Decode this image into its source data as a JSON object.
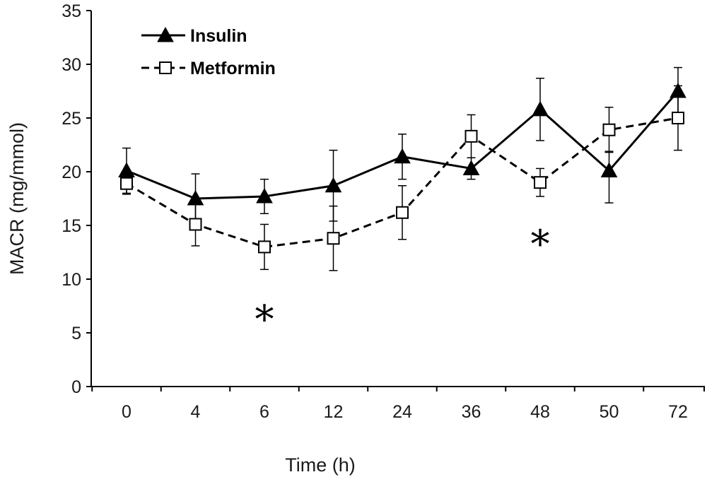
{
  "chart_data": {
    "type": "line",
    "xlabel": "Time (h)",
    "ylabel": "MACR (mg/mmol)",
    "categories": [
      "0",
      "4",
      "6",
      "12",
      "24",
      "36",
      "48",
      "50",
      "72"
    ],
    "ylim": [
      0,
      35
    ],
    "yticks": [
      0,
      5,
      10,
      15,
      20,
      25,
      30,
      35
    ],
    "grid": false,
    "legend_position": "top-left",
    "series": [
      {
        "name": "Insulin",
        "marker": "filled-triangle",
        "line_style": "solid",
        "color": "#000000",
        "values": [
          20.1,
          17.5,
          17.7,
          18.7,
          21.4,
          20.3,
          25.8,
          20.1,
          27.5
        ],
        "error_upper": [
          2.1,
          2.3,
          1.6,
          3.3,
          2.1,
          1.0,
          2.9,
          1.8,
          2.2
        ],
        "error_lower": [
          2.1,
          2.3,
          1.6,
          3.3,
          2.1,
          1.0,
          2.9,
          3.0,
          2.2
        ]
      },
      {
        "name": "Metformin",
        "marker": "open-square",
        "line_style": "dashed",
        "color": "#000000",
        "values": [
          18.9,
          15.1,
          13.0,
          13.8,
          16.2,
          23.3,
          19.0,
          23.9,
          25.0
        ],
        "error_upper": [
          1.0,
          2.0,
          2.1,
          3.0,
          2.5,
          2.0,
          1.3,
          2.1,
          3.0
        ],
        "error_lower": [
          1.0,
          2.0,
          2.1,
          3.0,
          2.5,
          2.0,
          1.3,
          2.1,
          3.0
        ]
      }
    ],
    "annotations": [
      {
        "text": "*",
        "category": "6",
        "y": 7.0
      },
      {
        "text": "*",
        "category": "48",
        "y": 14.0
      }
    ]
  }
}
